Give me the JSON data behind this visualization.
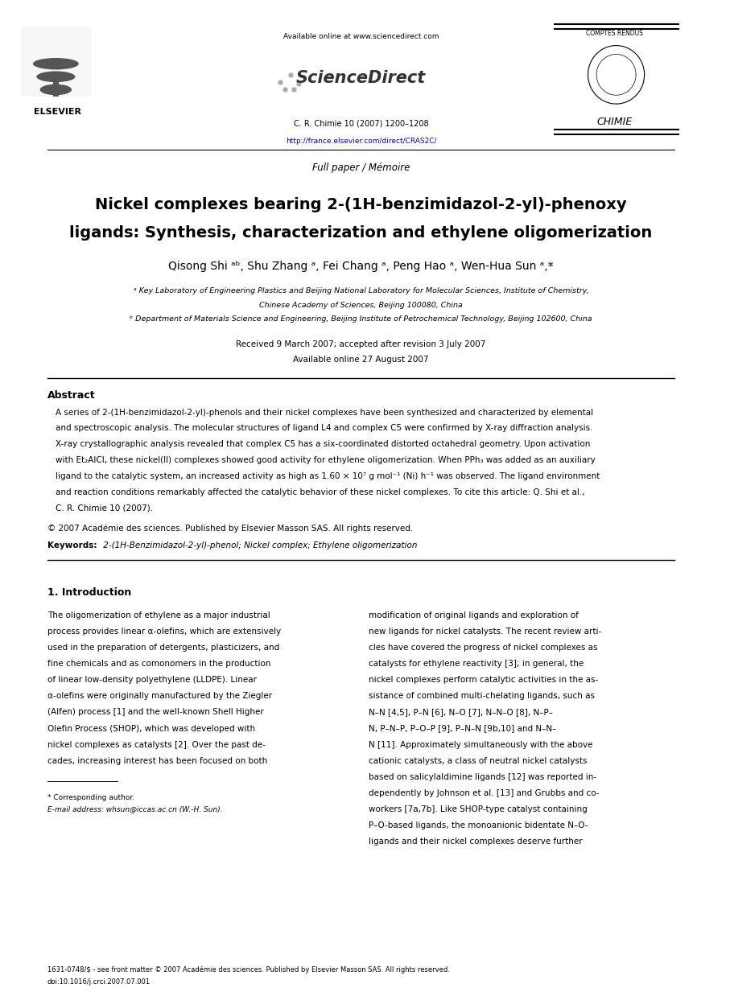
{
  "bg_color": "#ffffff",
  "page_width": 9.07,
  "page_height": 12.38,
  "header": {
    "available_online": "Available online at www.sciencedirect.com",
    "journal_info": "C. R. Chimie 10 (2007) 1200–1208",
    "url": "http://france.elsevier.com/direct/CRAS2C/",
    "url_color": "#0000cc",
    "full_paper": "Full paper / Mémoire"
  },
  "title_line1": "Nickel complexes bearing 2-(1H-benzimidazol-2-yl)-phenoxy",
  "title_line2": "ligands: Synthesis, characterization and ethylene oligomerization",
  "authors": "Qisong Shi ᵃᵇ, Shu Zhang ᵃ, Fei Chang ᵃ, Peng Hao ᵃ, Wen-Hua Sun ᵃ,*",
  "affil_a": "ᵃ Key Laboratory of Engineering Plastics and Beijing National Laboratory for Molecular Sciences, Institute of Chemistry,",
  "affil_a2": "Chinese Academy of Sciences, Beijing 100080, China",
  "affil_b": "ᵇ Department of Materials Science and Engineering, Beijing Institute of Petrochemical Technology, Beijing 102600, China",
  "received": "Received 9 March 2007; accepted after revision 3 July 2007",
  "available_online2": "Available online 27 August 2007",
  "abstract_title": "Abstract",
  "abstract_lines": [
    "A series of 2-(1H-benzimidazol-2-yl)-phenols and their nickel complexes have been synthesized and characterized by elemental",
    "and spectroscopic analysis. The molecular structures of ligand L4 and complex C5 were confirmed by X-ray diffraction analysis.",
    "X-ray crystallographic analysis revealed that complex C5 has a six-coordinated distorted octahedral geometry. Upon activation",
    "with Et₂AlCl, these nickel(II) complexes showed good activity for ethylene oligomerization. When PPh₃ was added as an auxiliary",
    "ligand to the catalytic system, an increased activity as high as 1.60 × 10⁷ g mol⁻¹ (Ni) h⁻¹ was observed. The ligand environment",
    "and reaction conditions remarkably affected the catalytic behavior of these nickel complexes. To cite this article: Q. Shi et al.,",
    "C. R. Chimie 10 (2007)."
  ],
  "copyright": "© 2007 Académie des sciences. Published by Elsevier Masson SAS. All rights reserved.",
  "keywords_label": "Keywords:",
  "keywords_text": " 2-(1H-Benzimidazol-2-yl)-phenol; Nickel complex; Ethylene oligomerization",
  "section1_title": "1. Introduction",
  "section1_left": [
    "The oligomerization of ethylene as a major industrial",
    "process provides linear α-olefins, which are extensively",
    "used in the preparation of detergents, plasticizers, and",
    "fine chemicals and as comonomers in the production",
    "of linear low-density polyethylene (LLDPE). Linear",
    "α-olefins were originally manufactured by the Ziegler",
    "(Alfen) process [1] and the well-known Shell Higher",
    "Olefin Process (SHOP), which was developed with",
    "nickel complexes as catalysts [2]. Over the past de-",
    "cades, increasing interest has been focused on both"
  ],
  "section1_right": [
    "modification of original ligands and exploration of",
    "new ligands for nickel catalysts. The recent review arti-",
    "cles have covered the progress of nickel complexes as",
    "catalysts for ethylene reactivity [3]; in general, the",
    "nickel complexes perform catalytic activities in the as-",
    "sistance of combined multi-chelating ligands, such as",
    "N–N [4,5], P–N [6], N–O [7], N–N–O [8], N–P–",
    "N, P–N–P, P–O–P [9], P–N–N [9b,10] and N–N–",
    "N [11]. Approximately simultaneously with the above",
    "cationic catalysts, a class of neutral nickel catalysts",
    "based on salicylaldimine ligands [12] was reported in-",
    "dependently by Johnson et al. [13] and Grubbs and co-",
    "workers [7a,7b]. Like SHOP-type catalyst containing",
    "P–O-based ligands, the monoanionic bidentate N–O-",
    "ligands and their nickel complexes deserve further"
  ],
  "footnote_star": "* Corresponding author.",
  "footnote_email": "E-mail address: whsun@iccas.ac.cn (W.-H. Sun).",
  "footer_line1": "1631-0748/$ - see front matter © 2007 Académie des sciences. Published by Elsevier Masson SAS. All rights reserved.",
  "footer_line2": "doi:10.1016/j.crci.2007.07.001"
}
